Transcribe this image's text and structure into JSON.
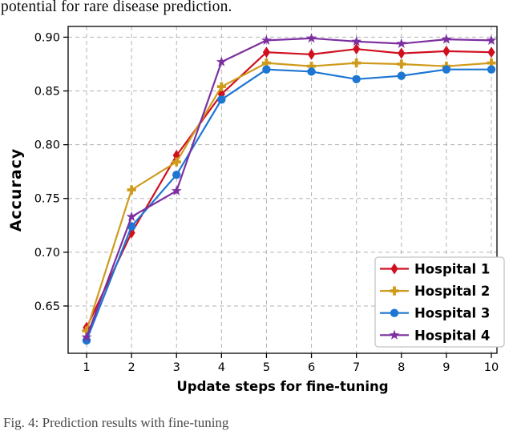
{
  "page": {
    "header_text": "potential for rare disease prediction.",
    "caption_text": "Fig. 4: Prediction results with fine-tuning"
  },
  "chart_data": {
    "type": "line",
    "title": "",
    "xlabel": "Update steps for fine-tuning",
    "ylabel": "Accuracy",
    "x": [
      1,
      2,
      3,
      4,
      5,
      6,
      7,
      8,
      9,
      10
    ],
    "ylim": [
      0.606,
      0.91
    ],
    "yticks": [
      0.65,
      0.7,
      0.75,
      0.8,
      0.85,
      0.9
    ],
    "grid": true,
    "grid_style": "dashed",
    "grid_color": "#b3b3b3",
    "legend_position": "lower right",
    "series": [
      {
        "name": "Hospital 1",
        "color": "#d01020",
        "marker": "diamond",
        "values": [
          0.63,
          0.718,
          0.79,
          0.847,
          0.886,
          0.884,
          0.889,
          0.885,
          0.887,
          0.886
        ]
      },
      {
        "name": "Hospital 2",
        "color": "#cf9b1c",
        "marker": "plus",
        "values": [
          0.627,
          0.758,
          0.784,
          0.854,
          0.876,
          0.873,
          0.876,
          0.875,
          0.873,
          0.876
        ]
      },
      {
        "name": "Hospital 3",
        "color": "#1d76d2",
        "marker": "circle",
        "values": [
          0.618,
          0.724,
          0.772,
          0.842,
          0.87,
          0.868,
          0.861,
          0.864,
          0.87,
          0.87
        ]
      },
      {
        "name": "Hospital 4",
        "color": "#7c2fa0",
        "marker": "star",
        "values": [
          0.621,
          0.733,
          0.757,
          0.877,
          0.897,
          0.899,
          0.896,
          0.894,
          0.898,
          0.897
        ]
      }
    ]
  }
}
